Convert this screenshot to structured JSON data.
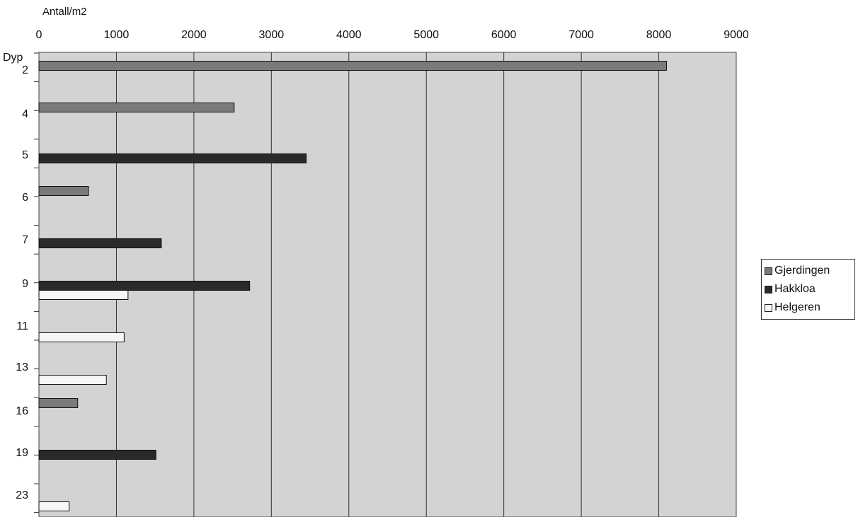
{
  "chart_data": {
    "type": "bar",
    "orientation": "horizontal",
    "x_axis_title": "Antall/m2",
    "y_axis_title": "Dyp",
    "xlim": [
      0,
      9000
    ],
    "x_ticks": [
      "0",
      "1000",
      "2000",
      "3000",
      "4000",
      "5000",
      "6000",
      "7000",
      "8000",
      "9000"
    ],
    "categories": [
      "2",
      "4",
      "5",
      "6",
      "7",
      "9",
      "11",
      "13",
      "16",
      "19",
      "23"
    ],
    "grid": true,
    "legend_position": "right",
    "series": [
      {
        "name": "Gjerdingen",
        "color": "#7a7a7a",
        "values": [
          8100,
          2520,
          null,
          640,
          null,
          null,
          null,
          null,
          500,
          null,
          null
        ]
      },
      {
        "name": "Hakkloa",
        "color": "#2a2a2a",
        "values": [
          null,
          null,
          3450,
          null,
          1580,
          2720,
          null,
          null,
          null,
          1510,
          null
        ]
      },
      {
        "name": "Helgeren",
        "color": "#f6f6f6",
        "values": [
          null,
          null,
          null,
          null,
          null,
          1150,
          1100,
          870,
          null,
          null,
          390
        ]
      }
    ]
  }
}
